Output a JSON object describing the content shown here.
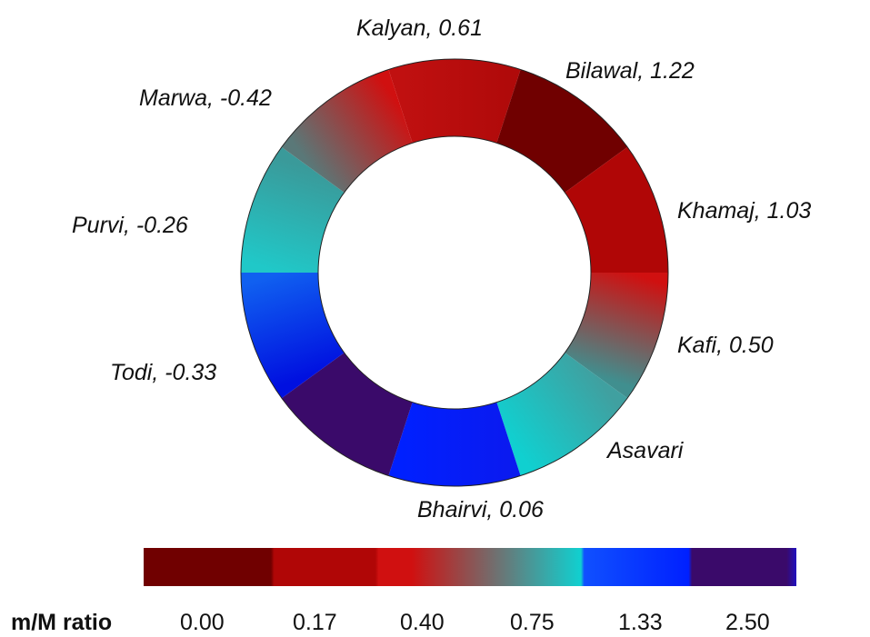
{
  "ring": {
    "segments": [
      {
        "name": "Kalyan",
        "value": "0.61",
        "color_start": "#c01010",
        "color_end": "#b00a0a"
      },
      {
        "name": "Bilawal",
        "value": "1.22",
        "color_start": "#700000",
        "color_end": "#700000"
      },
      {
        "name": "Khamaj",
        "value": "1.03",
        "color_start": "#b00606",
        "color_end": "#b00606"
      },
      {
        "name": "Kafi",
        "value": "0.50",
        "color_start": "#d01010",
        "color_end": "#408f8f"
      },
      {
        "name": "Asavari",
        "value": "",
        "color_start": "#40a0a0",
        "color_end": "#10d0d0"
      },
      {
        "name": "Bhairvi",
        "value": "0.06",
        "color_start": "#0a1af0",
        "color_end": "#0020ff"
      },
      {
        "name": "Todi",
        "value": "-0.33",
        "color_start": "#3a0a6a",
        "color_end": "#3a0a6a"
      },
      {
        "name": "Todi",
        "value": "-0.33",
        "color_start": "#0010e0",
        "color_end": "#1060f0"
      },
      {
        "name": "Purvi",
        "value": "-0.26",
        "color_start": "#20c8c8",
        "color_end": "#3a9a9a"
      },
      {
        "name": "Marwa",
        "value": "-0.42",
        "color_start": "#5a7878",
        "color_end": "#d01010"
      }
    ],
    "labels": [
      {
        "id": "kalyan",
        "text": "Kalyan, 0.61"
      },
      {
        "id": "bilawal",
        "text": "Bilawal, 1.22"
      },
      {
        "id": "marwa",
        "text": "Marwa, -0.42"
      },
      {
        "id": "khamaj",
        "text": "Khamaj, 1.03"
      },
      {
        "id": "purvi",
        "text": "Purvi, -0.26"
      },
      {
        "id": "kafi",
        "text": "Kafi, 0.50"
      },
      {
        "id": "todi",
        "text": "Todi, -0.33"
      },
      {
        "id": "asavari",
        "text": "Asavari"
      },
      {
        "id": "bhairvi",
        "text": "Bhairvi, 0.06"
      }
    ]
  },
  "colorbar": {
    "title": "m/M ratio",
    "ticks": [
      "0.00",
      "0.17",
      "0.40",
      "0.75",
      "1.33",
      "2.50"
    ],
    "stops": [
      {
        "color": "#700000"
      },
      {
        "color": "#b00606"
      },
      {
        "color": "#d01010"
      },
      {
        "color": "#10d0d0"
      },
      {
        "color": "#0020ff"
      },
      {
        "color": "#3a0a6a"
      }
    ]
  }
}
